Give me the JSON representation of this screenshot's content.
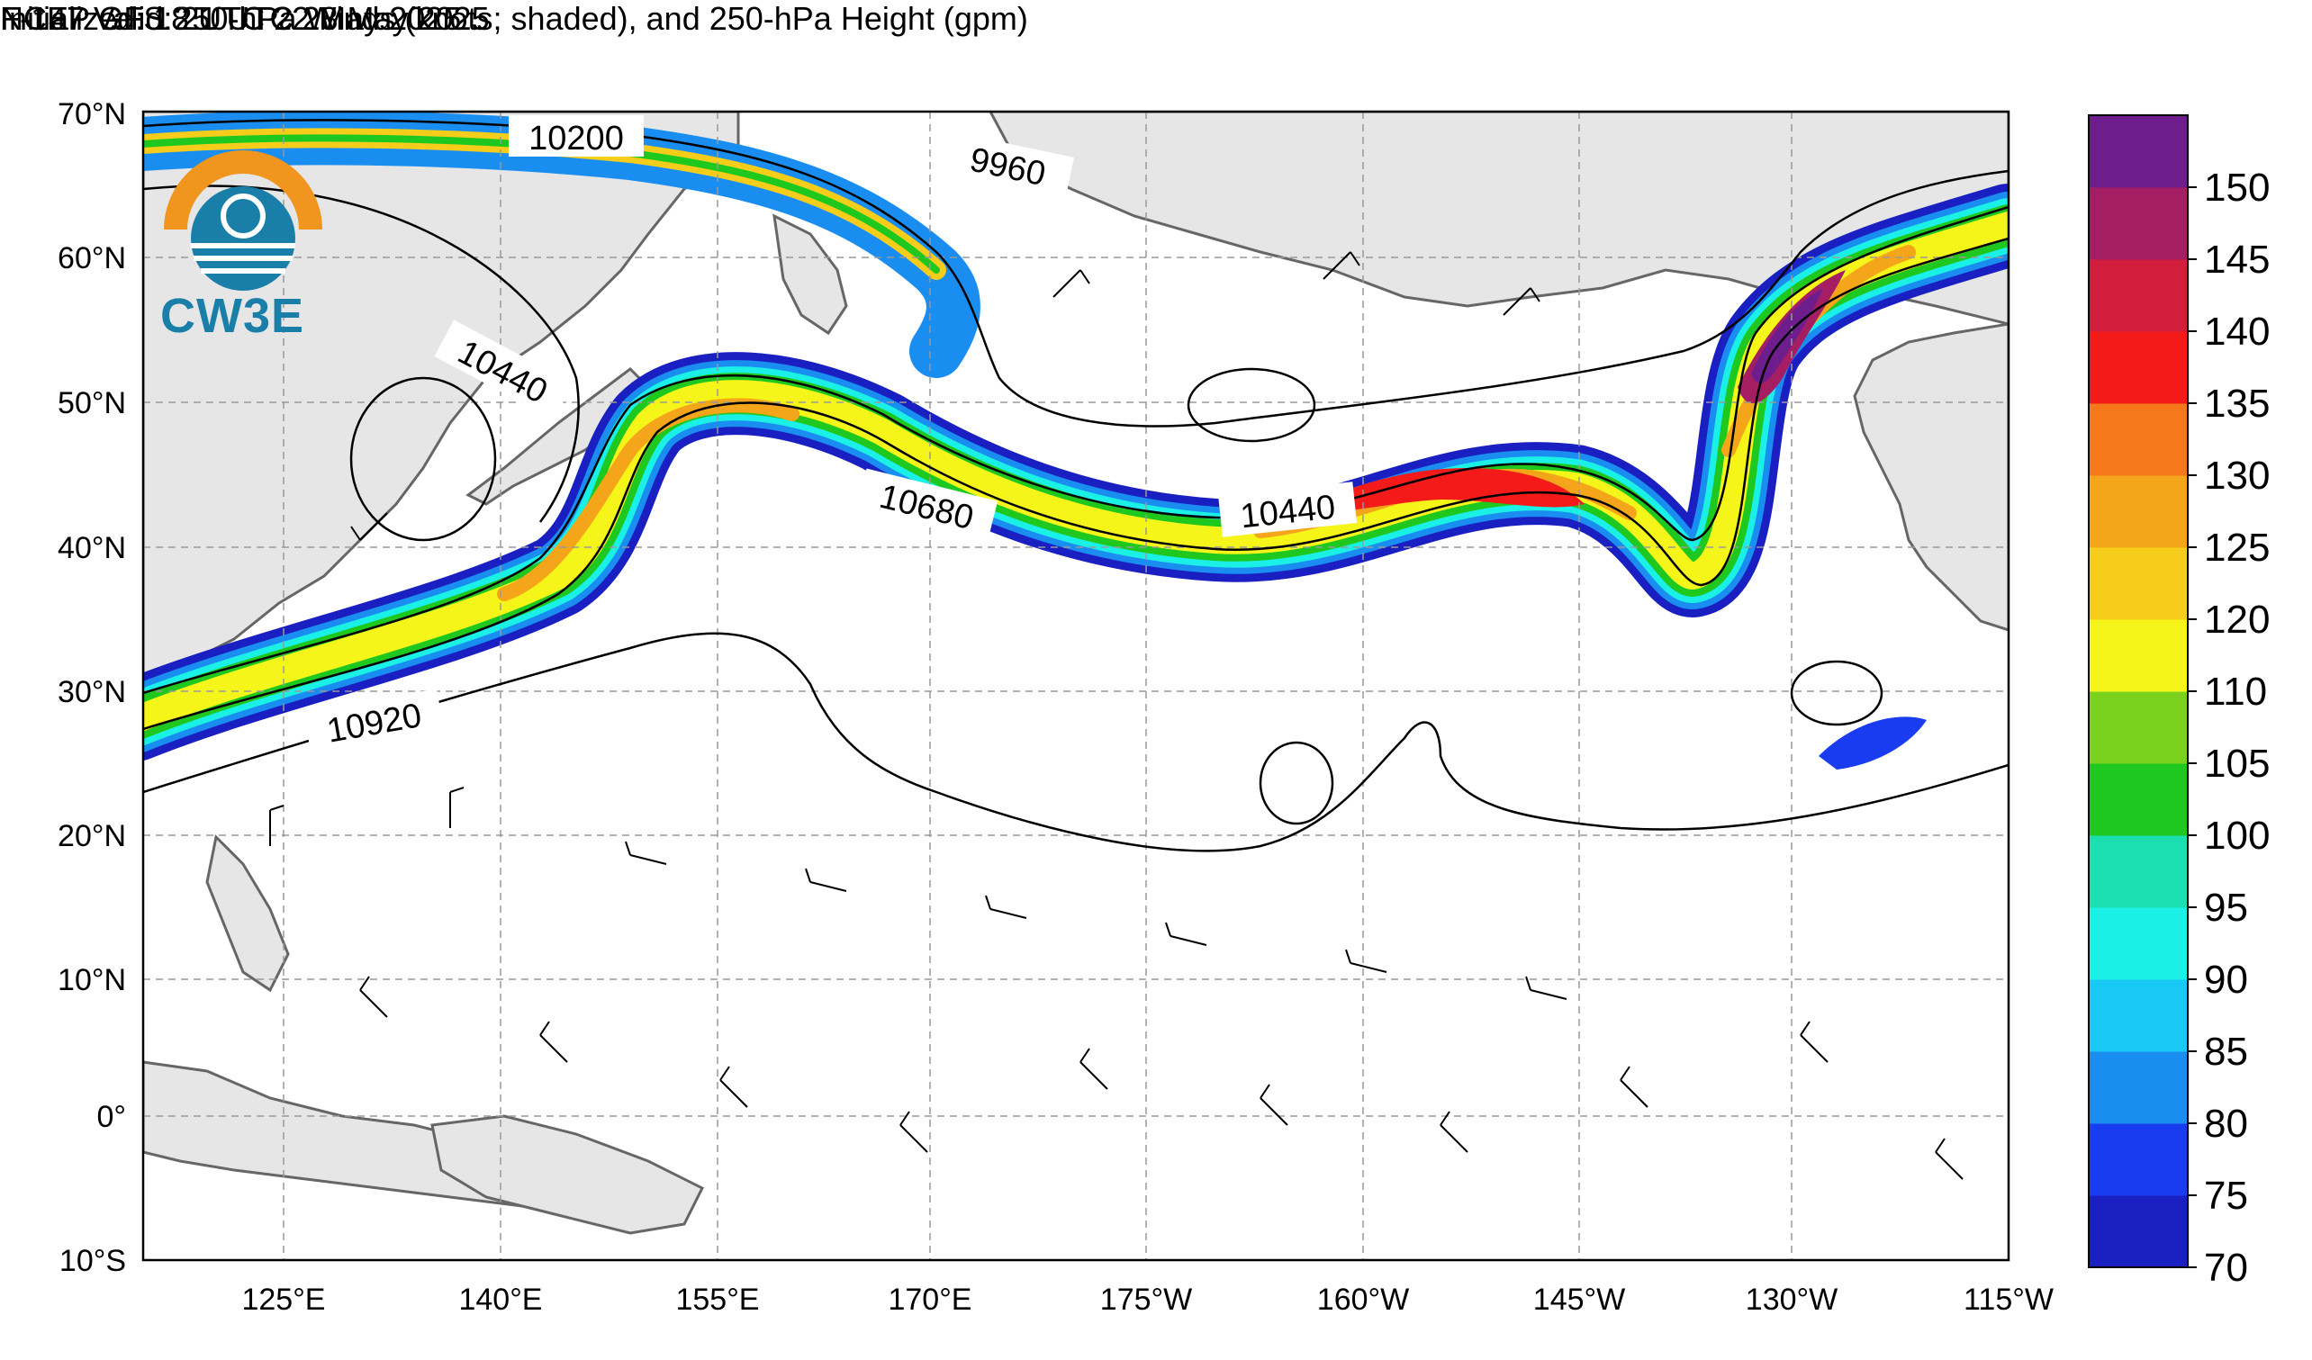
{
  "title": {
    "line1": "NCEP GFS 250-hPa Winds (knots; shaded), and 250-hPa Height (gpm)",
    "initialized": "Initialized: 18 UTC 22 May 2025",
    "valid": "F-147  Valid: 21 UTC 28 May 2025"
  },
  "logo": {
    "text": "CW3E"
  },
  "axes": {
    "lat_labels": [
      "70°N",
      "60°N",
      "50°N",
      "40°N",
      "30°N",
      "20°N",
      "10°N",
      "0°",
      "10°S"
    ],
    "lon_labels": [
      "125°E",
      "140°E",
      "155°E",
      "170°E",
      "175°W",
      "160°W",
      "145°W",
      "130°W",
      "115°W"
    ]
  },
  "contour_labels": [
    "10200",
    "9960",
    "10440",
    "10680",
    "10440",
    "10920"
  ],
  "colorbar": {
    "levels": [
      "70",
      "75",
      "80",
      "85",
      "90",
      "95",
      "100",
      "105",
      "110",
      "120",
      "125",
      "130",
      "135",
      "140",
      "145",
      "150"
    ],
    "colors": [
      "#1a1fc2",
      "#1a3cf0",
      "#1a8ef0",
      "#1ac8f5",
      "#1af0e6",
      "#1ae0b0",
      "#1ec81e",
      "#7ad21e",
      "#f5f51a",
      "#f5cd1a",
      "#f5a51a",
      "#f5781a",
      "#f51a1a",
      "#d21e3c",
      "#a51e64",
      "#6e1e8c"
    ]
  },
  "colors": {
    "land": "#e6e6e6",
    "coast": "#666666",
    "grid": "#999999",
    "contour": "#000000",
    "logo_orange": "#f0961e",
    "logo_blue": "#1a7fa8"
  }
}
